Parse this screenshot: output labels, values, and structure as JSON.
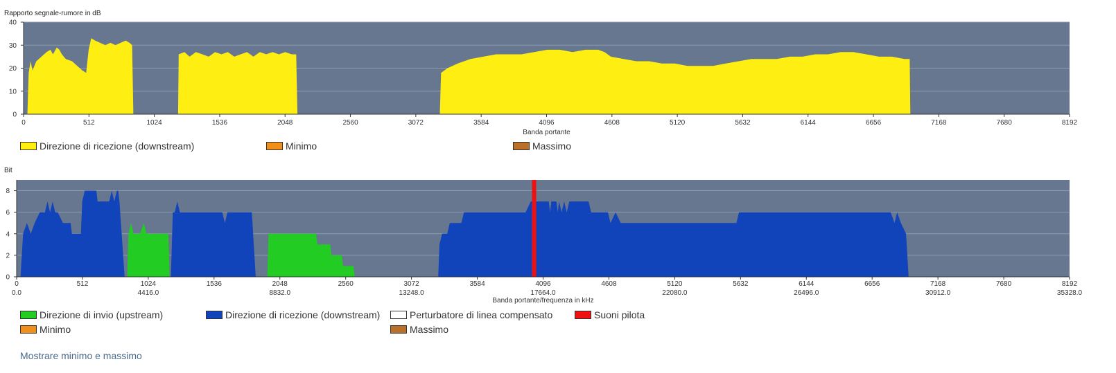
{
  "chart_data": [
    {
      "type": "area",
      "title": "Rapporto segnale-rumore in dB",
      "xlabel": "Banda portante",
      "xlim": [
        0,
        8192
      ],
      "ylim": [
        0,
        40
      ],
      "xticks": [
        0,
        512,
        1024,
        1536,
        2048,
        2560,
        3072,
        3584,
        4096,
        4608,
        5120,
        5632,
        6144,
        6656,
        7168,
        7680,
        8192
      ],
      "yticks": [
        0,
        10,
        20,
        30,
        40
      ],
      "grid": true,
      "legend_position": "bottom",
      "series": [
        {
          "name": "Direzione di ricezione (downstream)",
          "color": "#ffee11",
          "points": [
            [
              30,
              0
            ],
            [
              40,
              18
            ],
            [
              55,
              23
            ],
            [
              70,
              19
            ],
            [
              100,
              23
            ],
            [
              140,
              25
            ],
            [
              180,
              27
            ],
            [
              210,
              28
            ],
            [
              230,
              26
            ],
            [
              260,
              29
            ],
            [
              280,
              28
            ],
            [
              300,
              26
            ],
            [
              330,
              24
            ],
            [
              380,
              23
            ],
            [
              420,
              21
            ],
            [
              460,
              19
            ],
            [
              490,
              18
            ],
            [
              510,
              28
            ],
            [
              530,
              33
            ],
            [
              560,
              32
            ],
            [
              600,
              31
            ],
            [
              640,
              30
            ],
            [
              680,
              31
            ],
            [
              720,
              30
            ],
            [
              760,
              31
            ],
            [
              800,
              32
            ],
            [
              830,
              31
            ],
            [
              850,
              30
            ],
            [
              860,
              0
            ],
            [
              1210,
              0
            ],
            [
              1215,
              26
            ],
            [
              1260,
              27
            ],
            [
              1300,
              25
            ],
            [
              1350,
              27
            ],
            [
              1400,
              26
            ],
            [
              1450,
              25
            ],
            [
              1500,
              27
            ],
            [
              1550,
              26
            ],
            [
              1600,
              27
            ],
            [
              1650,
              25
            ],
            [
              1700,
              26
            ],
            [
              1750,
              27
            ],
            [
              1800,
              25
            ],
            [
              1850,
              27
            ],
            [
              1900,
              26
            ],
            [
              1950,
              27
            ],
            [
              2000,
              26
            ],
            [
              2050,
              27
            ],
            [
              2100,
              26
            ],
            [
              2135,
              26
            ],
            [
              2145,
              0
            ],
            [
              3260,
              0
            ],
            [
              3270,
              18
            ],
            [
              3320,
              20
            ],
            [
              3400,
              22
            ],
            [
              3500,
              24
            ],
            [
              3600,
              25
            ],
            [
              3700,
              26
            ],
            [
              3800,
              26
            ],
            [
              3900,
              26
            ],
            [
              4000,
              27
            ],
            [
              4100,
              28
            ],
            [
              4200,
              28
            ],
            [
              4300,
              27
            ],
            [
              4400,
              28
            ],
            [
              4500,
              28
            ],
            [
              4550,
              27
            ],
            [
              4600,
              25
            ],
            [
              4700,
              24
            ],
            [
              4800,
              23
            ],
            [
              4900,
              23
            ],
            [
              5000,
              22
            ],
            [
              5100,
              22
            ],
            [
              5200,
              21
            ],
            [
              5300,
              21
            ],
            [
              5400,
              21
            ],
            [
              5500,
              22
            ],
            [
              5600,
              23
            ],
            [
              5700,
              24
            ],
            [
              5800,
              24
            ],
            [
              5900,
              24
            ],
            [
              6000,
              25
            ],
            [
              6100,
              25
            ],
            [
              6200,
              26
            ],
            [
              6300,
              26
            ],
            [
              6400,
              27
            ],
            [
              6500,
              27
            ],
            [
              6600,
              26
            ],
            [
              6700,
              25
            ],
            [
              6800,
              25
            ],
            [
              6900,
              24
            ],
            [
              6940,
              24
            ],
            [
              6945,
              0
            ]
          ]
        },
        {
          "name": "Minimo",
          "color": "#f0901a",
          "points": []
        },
        {
          "name": "Massimo",
          "color": "#b8702a",
          "points": []
        }
      ]
    },
    {
      "type": "area",
      "title": "Bit",
      "xlabel": "Banda portante/frequenza in kHz",
      "xlim": [
        0,
        8192
      ],
      "ylim": [
        0,
        9
      ],
      "xticks": [
        0,
        512,
        1024,
        1536,
        2048,
        2560,
        3072,
        3584,
        4096,
        4608,
        5120,
        5632,
        6144,
        6656,
        7168,
        7680,
        8192
      ],
      "xticks_secondary": [
        {
          "x": 0,
          "label": "0.0"
        },
        {
          "x": 1024,
          "label": "4416.0"
        },
        {
          "x": 2048,
          "label": "8832.0"
        },
        {
          "x": 3072,
          "label": "13248.0"
        },
        {
          "x": 4096,
          "label": "17664.0"
        },
        {
          "x": 5120,
          "label": "22080.0"
        },
        {
          "x": 6144,
          "label": "26496.0"
        },
        {
          "x": 7168,
          "label": "30912.0"
        },
        {
          "x": 8192,
          "label": "35328.0"
        }
      ],
      "yticks": [
        0,
        2,
        4,
        6,
        8
      ],
      "grid": true,
      "legend_position": "bottom",
      "series": [
        {
          "name": "Direzione di invio (upstream)",
          "color": "#22cc22",
          "points": [
            [
              860,
              0
            ],
            [
              870,
              4
            ],
            [
              890,
              5
            ],
            [
              910,
              4
            ],
            [
              960,
              4
            ],
            [
              990,
              5
            ],
            [
              1010,
              4
            ],
            [
              1060,
              4
            ],
            [
              1180,
              4
            ],
            [
              1190,
              0
            ],
            [
              1950,
              0
            ],
            [
              1960,
              4
            ],
            [
              2330,
              4
            ],
            [
              2340,
              3
            ],
            [
              2440,
              3
            ],
            [
              2450,
              2
            ],
            [
              2530,
              2
            ],
            [
              2540,
              1
            ],
            [
              2620,
              1
            ],
            [
              2630,
              0
            ]
          ]
        },
        {
          "name": "Direzione di ricezione (downstream)",
          "color": "#1144bb",
          "points": [
            [
              30,
              0
            ],
            [
              50,
              4
            ],
            [
              80,
              5
            ],
            [
              110,
              4
            ],
            [
              140,
              5
            ],
            [
              180,
              6
            ],
            [
              220,
              6
            ],
            [
              240,
              7
            ],
            [
              260,
              6
            ],
            [
              280,
              7
            ],
            [
              300,
              6
            ],
            [
              320,
              6
            ],
            [
              360,
              5
            ],
            [
              420,
              5
            ],
            [
              430,
              4
            ],
            [
              500,
              4
            ],
            [
              510,
              7
            ],
            [
              530,
              8
            ],
            [
              620,
              8
            ],
            [
              630,
              7
            ],
            [
              720,
              7
            ],
            [
              740,
              8
            ],
            [
              760,
              7
            ],
            [
              780,
              8
            ],
            [
              790,
              8
            ],
            [
              800,
              7
            ],
            [
              840,
              0
            ],
            [
              1200,
              0
            ],
            [
              1215,
              6
            ],
            [
              1230,
              6
            ],
            [
              1250,
              7
            ],
            [
              1270,
              6
            ],
            [
              1600,
              6
            ],
            [
              1620,
              5
            ],
            [
              1640,
              6
            ],
            [
              1830,
              6
            ],
            [
              1860,
              0
            ],
            [
              3280,
              0
            ],
            [
              3290,
              3
            ],
            [
              3310,
              4
            ],
            [
              3350,
              4
            ],
            [
              3370,
              5
            ],
            [
              3460,
              5
            ],
            [
              3480,
              6
            ],
            [
              3500,
              6
            ],
            [
              3520,
              6
            ],
            [
              3960,
              6
            ],
            [
              4000,
              7
            ],
            [
              4040,
              7
            ],
            [
              4140,
              7
            ],
            [
              4150,
              6
            ],
            [
              4160,
              7
            ],
            [
              4200,
              7
            ],
            [
              4210,
              6
            ],
            [
              4220,
              7
            ],
            [
              4240,
              6
            ],
            [
              4260,
              7
            ],
            [
              4280,
              6
            ],
            [
              4300,
              7
            ],
            [
              4450,
              7
            ],
            [
              4470,
              6
            ],
            [
              4500,
              6
            ],
            [
              4600,
              6
            ],
            [
              4620,
              5
            ],
            [
              4660,
              6
            ],
            [
              4700,
              5
            ],
            [
              5600,
              5
            ],
            [
              5620,
              6
            ],
            [
              5800,
              6
            ],
            [
              6000,
              6
            ],
            [
              6200,
              6
            ],
            [
              6400,
              6
            ],
            [
              6600,
              6
            ],
            [
              6800,
              6
            ],
            [
              6830,
              5
            ],
            [
              6850,
              6
            ],
            [
              6880,
              5
            ],
            [
              6920,
              4
            ],
            [
              6940,
              0
            ]
          ]
        },
        {
          "name": "Perturbatore di linea compensato",
          "color": "#ffffff",
          "points": []
        },
        {
          "name": "Suoni pilota",
          "color": "#ee1111",
          "x": [
            4026
          ]
        },
        {
          "name": "Minimo",
          "color": "#f0901a",
          "points": []
        },
        {
          "name": "Massimo",
          "color": "#b8702a",
          "points": []
        }
      ]
    }
  ],
  "ui": {
    "toggle_link": "Mostrare minimo e massimo"
  },
  "colors": {
    "plot_bg": "#66778f",
    "grid": "#8c9bb0"
  }
}
